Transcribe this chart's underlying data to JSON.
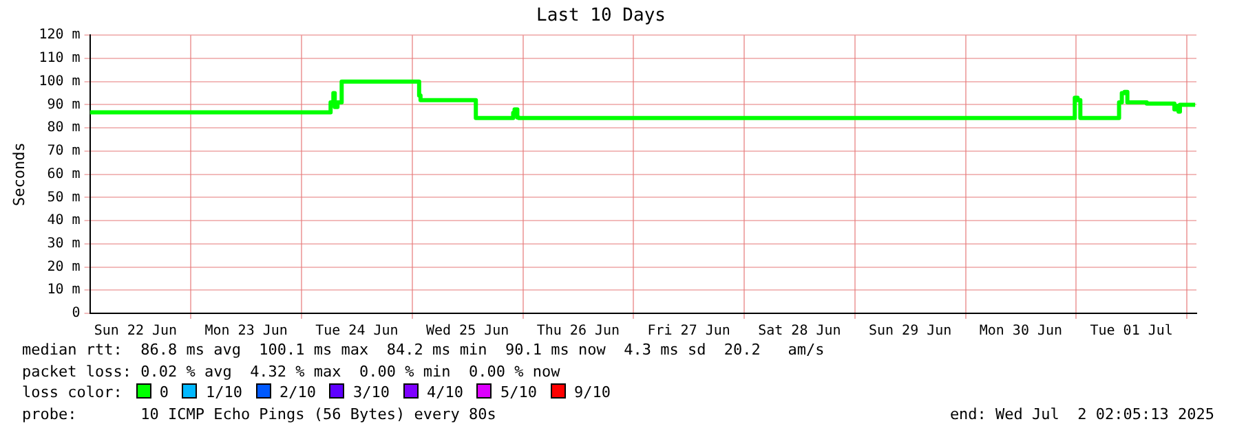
{
  "chart_data": {
    "type": "step",
    "title": "Last 10 Days",
    "ylabel": "Seconds",
    "xlim": [
      "2025-06-22T02:06",
      "2025-07-02T02:05"
    ],
    "xticks": [
      {
        "value": "2025-06-22T12:00",
        "label": "Sun 22 Jun"
      },
      {
        "value": "2025-06-23T00:00",
        "label": null
      },
      {
        "value": "2025-06-23T12:00",
        "label": "Mon 23 Jun"
      },
      {
        "value": "2025-06-24T00:00",
        "label": null
      },
      {
        "value": "2025-06-24T12:00",
        "label": "Tue 24 Jun"
      },
      {
        "value": "2025-06-25T00:00",
        "label": null
      },
      {
        "value": "2025-06-25T12:00",
        "label": "Wed 25 Jun"
      },
      {
        "value": "2025-06-26T00:00",
        "label": null
      },
      {
        "value": "2025-06-26T12:00",
        "label": "Thu 26 Jun"
      },
      {
        "value": "2025-06-27T00:00",
        "label": null
      },
      {
        "value": "2025-06-27T12:00",
        "label": "Fri 27 Jun"
      },
      {
        "value": "2025-06-28T00:00",
        "label": null
      },
      {
        "value": "2025-06-28T12:00",
        "label": "Sat 28 Jun"
      },
      {
        "value": "2025-06-29T00:00",
        "label": null
      },
      {
        "value": "2025-06-29T12:00",
        "label": "Sun 29 Jun"
      },
      {
        "value": "2025-06-30T00:00",
        "label": null
      },
      {
        "value": "2025-06-30T12:00",
        "label": "Mon 30 Jun"
      },
      {
        "value": "2025-07-01T00:00",
        "label": null
      },
      {
        "value": "2025-07-01T12:00",
        "label": "Tue 01 Jul"
      },
      {
        "value": "2025-07-02T00:00",
        "label": null
      }
    ],
    "ylim": [
      0,
      120
    ],
    "yticks": [
      0,
      {
        "value": 10,
        "label": "10 m"
      },
      {
        "value": 20,
        "label": "20 m"
      },
      {
        "value": 30,
        "label": "30 m"
      },
      {
        "value": 40,
        "label": "40 m"
      },
      {
        "value": 50,
        "label": "50 m"
      },
      {
        "value": 60,
        "label": "60 m"
      },
      {
        "value": 70,
        "label": "70 m"
      },
      {
        "value": 80,
        "label": "80 m"
      },
      {
        "value": 90,
        "label": "90 m"
      },
      {
        "value": 100,
        "label": "100 m"
      },
      {
        "value": 110,
        "label": "110 m"
      },
      {
        "value": 120,
        "label": "120 m"
      }
    ],
    "grid": true,
    "x": [
      "2025-06-22T02:06",
      "2025-06-24T06:18",
      "2025-06-24T06:54",
      "2025-06-24T07:12",
      "2025-06-24T07:48",
      "2025-06-24T08:42",
      "2025-06-24T09:18",
      "2025-06-25T01:30",
      "2025-06-25T01:48",
      "2025-06-25T02:24",
      "2025-06-25T13:48",
      "2025-06-25T14:06",
      "2025-06-25T21:54",
      "2025-06-25T22:12",
      "2025-06-25T22:48",
      "2025-06-25T23:06",
      "2025-06-30T23:42",
      "2025-07-01T00:18",
      "2025-07-01T00:54",
      "2025-07-01T01:12",
      "2025-07-01T09:18",
      "2025-07-01T09:54",
      "2025-07-01T10:30",
      "2025-07-01T11:06",
      "2025-07-01T11:42",
      "2025-07-01T15:18",
      "2025-07-01T21:18",
      "2025-07-01T21:36",
      "2025-07-01T22:12",
      "2025-07-01T22:30",
      "2025-07-01T23:24",
      "2025-07-02T01:48"
    ],
    "series": [
      {
        "color": "#00ff00",
        "values": [
          86.7,
          86.7,
          91,
          95,
          89,
          91,
          100,
          100,
          94,
          92,
          92,
          84.3,
          84.3,
          86.5,
          88,
          84.5,
          84.3,
          93,
          92,
          84.3,
          84.3,
          91,
          95,
          95.5,
          91,
          91,
          90.5,
          88,
          89.5,
          87,
          90,
          90
        ]
      }
    ],
    "annotations": [
      "median rtt:  86.8 ms avg  100.1 ms max  84.2 ms min  90.1 ms now  4.3 ms sd  20.2   am/s",
      "packet loss: 0.02 % avg  4.32 % max  0.00 % min  0.00 % now",
      "loss color:",
      "0",
      "1/10",
      "2/10",
      "3/10",
      "4/10",
      "5/10",
      "9/10",
      "probe:       10 ICMP Echo Pings (56 Bytes) every 80s",
      "end: Wed Jul  2 02:05:13 2025"
    ]
  }
}
